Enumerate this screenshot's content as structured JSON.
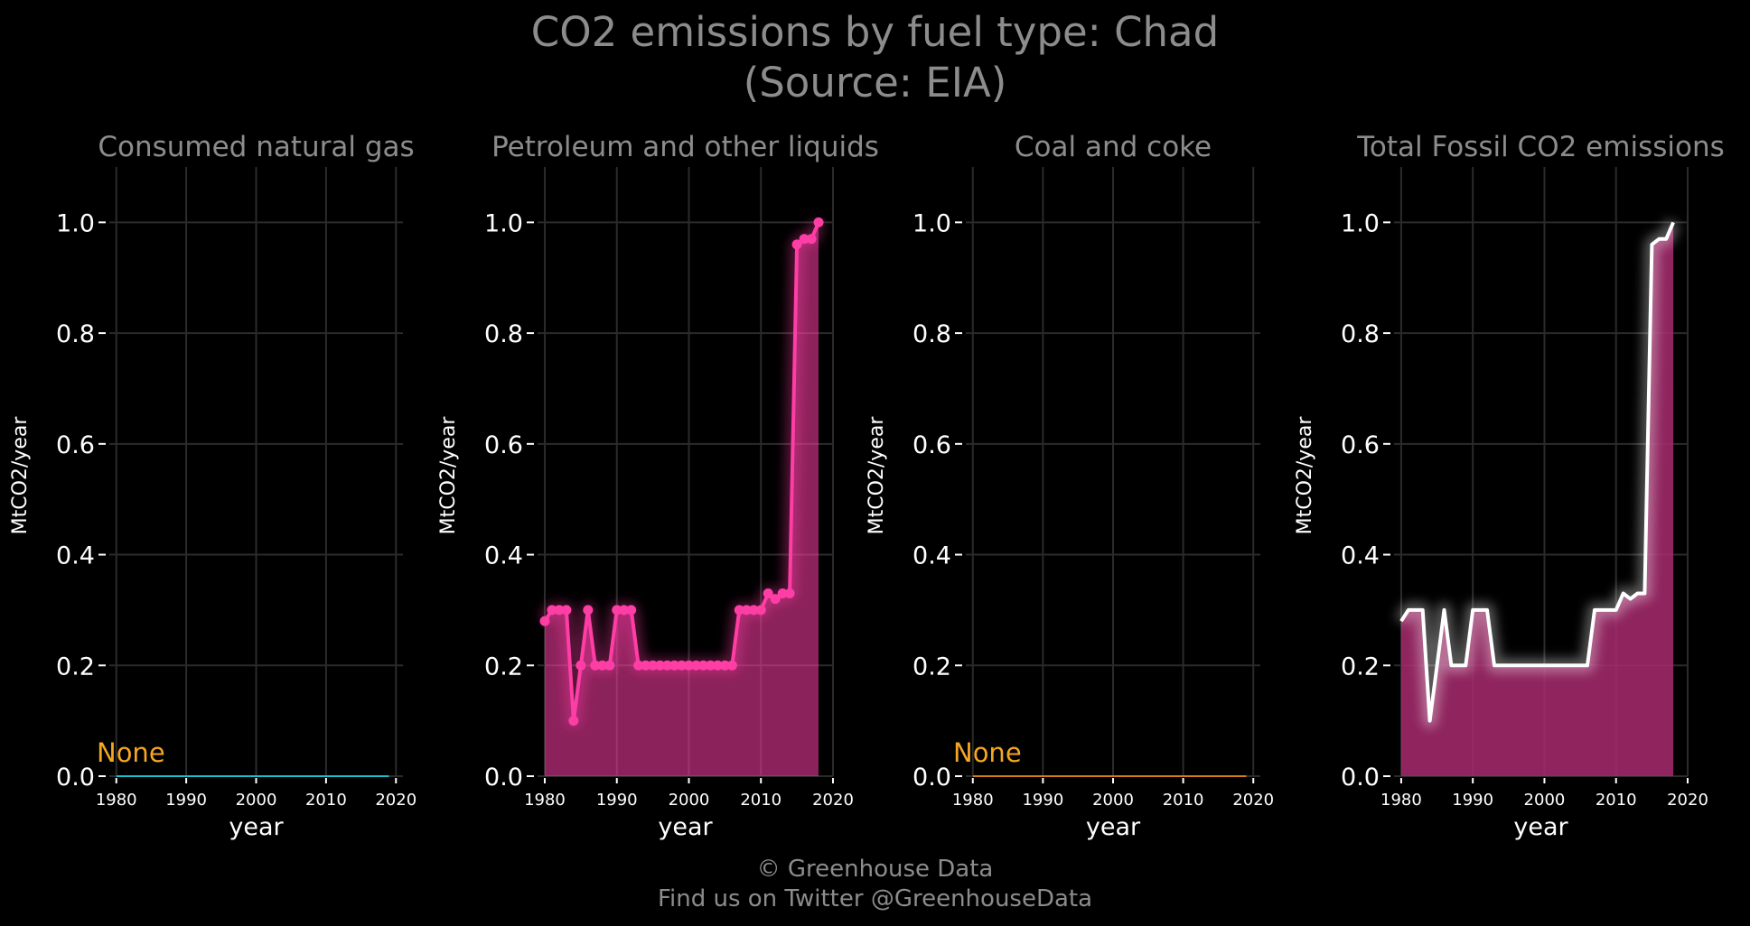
{
  "title_line1": "CO2 emissions by fuel type: Chad",
  "title_line2": "(Source: EIA)",
  "footer_line1": "© Greenhouse Data",
  "footer_line2": "Find us on Twitter @GreenhouseData",
  "colors": {
    "background": "#000000",
    "grid": "#2b2b2b",
    "title_text": "#8c8c8c",
    "tick_text": "#ffffff",
    "petroleum": "#ff3ea5",
    "total_fill": "#a82a6e",
    "total_line": "#ffffff",
    "gas_line": "#17becf",
    "coal_line": "#d97b18",
    "none_label": "#f5a623"
  },
  "chart_data": [
    {
      "type": "line",
      "title": "Consumed natural gas",
      "xlabel": "year",
      "ylabel": "MtCO2/year",
      "xlim": [
        1979,
        2021
      ],
      "ylim": [
        0,
        1.1
      ],
      "xticks": [
        "1980",
        "1990",
        "2000",
        "2010",
        "2020"
      ],
      "yticks": [
        "0.0",
        "0.2",
        "0.4",
        "0.6",
        "0.8",
        "1.0"
      ],
      "grid": true,
      "annotation": "None",
      "series": [
        {
          "x": [
            1980,
            2019
          ],
          "y": [
            0,
            0
          ]
        }
      ]
    },
    {
      "type": "area",
      "title": "Petroleum and other liquids",
      "xlabel": "year",
      "ylabel": "MtCO2/year",
      "xlim": [
        1979,
        2020
      ],
      "ylim": [
        0,
        1.1
      ],
      "xticks": [
        "1980",
        "1990",
        "2000",
        "2010",
        "2020"
      ],
      "yticks": [
        "0.0",
        "0.2",
        "0.4",
        "0.6",
        "0.8",
        "1.0"
      ],
      "grid": true,
      "series": [
        {
          "x": [
            1980,
            1981,
            1982,
            1983,
            1984,
            1985,
            1986,
            1987,
            1988,
            1989,
            1990,
            1991,
            1992,
            1993,
            1994,
            1995,
            1996,
            1997,
            1998,
            1999,
            2000,
            2001,
            2002,
            2003,
            2004,
            2005,
            2006,
            2007,
            2008,
            2009,
            2010,
            2011,
            2012,
            2013,
            2014,
            2015,
            2016,
            2017,
            2018
          ],
          "y": [
            0.28,
            0.3,
            0.3,
            0.3,
            0.1,
            0.2,
            0.3,
            0.2,
            0.2,
            0.2,
            0.3,
            0.3,
            0.3,
            0.2,
            0.2,
            0.2,
            0.2,
            0.2,
            0.2,
            0.2,
            0.2,
            0.2,
            0.2,
            0.2,
            0.2,
            0.2,
            0.2,
            0.3,
            0.3,
            0.3,
            0.3,
            0.33,
            0.32,
            0.33,
            0.33,
            0.96,
            0.97,
            0.97,
            1.0
          ]
        }
      ]
    },
    {
      "type": "line",
      "title": "Coal and coke",
      "xlabel": "year",
      "ylabel": "MtCO2/year",
      "xlim": [
        1979,
        2021
      ],
      "ylim": [
        0,
        1.1
      ],
      "xticks": [
        "1980",
        "1990",
        "2000",
        "2010",
        "2020"
      ],
      "yticks": [
        "0.0",
        "0.2",
        "0.4",
        "0.6",
        "0.8",
        "1.0"
      ],
      "grid": true,
      "annotation": "None",
      "series": [
        {
          "x": [
            1980,
            2019
          ],
          "y": [
            0,
            0
          ]
        }
      ]
    },
    {
      "type": "area",
      "title": "Total Fossil CO2 emissions",
      "xlabel": "year",
      "ylabel": "MtCO2/year",
      "xlim": [
        1979,
        2020
      ],
      "ylim": [
        0,
        1.1
      ],
      "xticks": [
        "1980",
        "1990",
        "2000",
        "2010",
        "2020"
      ],
      "yticks": [
        "0.0",
        "0.2",
        "0.4",
        "0.6",
        "0.8",
        "1.0"
      ],
      "grid": true,
      "series": [
        {
          "x": [
            1980,
            1981,
            1982,
            1983,
            1984,
            1985,
            1986,
            1987,
            1988,
            1989,
            1990,
            1991,
            1992,
            1993,
            1994,
            1995,
            1996,
            1997,
            1998,
            1999,
            2000,
            2001,
            2002,
            2003,
            2004,
            2005,
            2006,
            2007,
            2008,
            2009,
            2010,
            2011,
            2012,
            2013,
            2014,
            2015,
            2016,
            2017,
            2018
          ],
          "y": [
            0.28,
            0.3,
            0.3,
            0.3,
            0.1,
            0.2,
            0.3,
            0.2,
            0.2,
            0.2,
            0.3,
            0.3,
            0.3,
            0.2,
            0.2,
            0.2,
            0.2,
            0.2,
            0.2,
            0.2,
            0.2,
            0.2,
            0.2,
            0.2,
            0.2,
            0.2,
            0.2,
            0.3,
            0.3,
            0.3,
            0.3,
            0.33,
            0.32,
            0.33,
            0.33,
            0.96,
            0.97,
            0.97,
            1.0
          ]
        }
      ]
    }
  ]
}
